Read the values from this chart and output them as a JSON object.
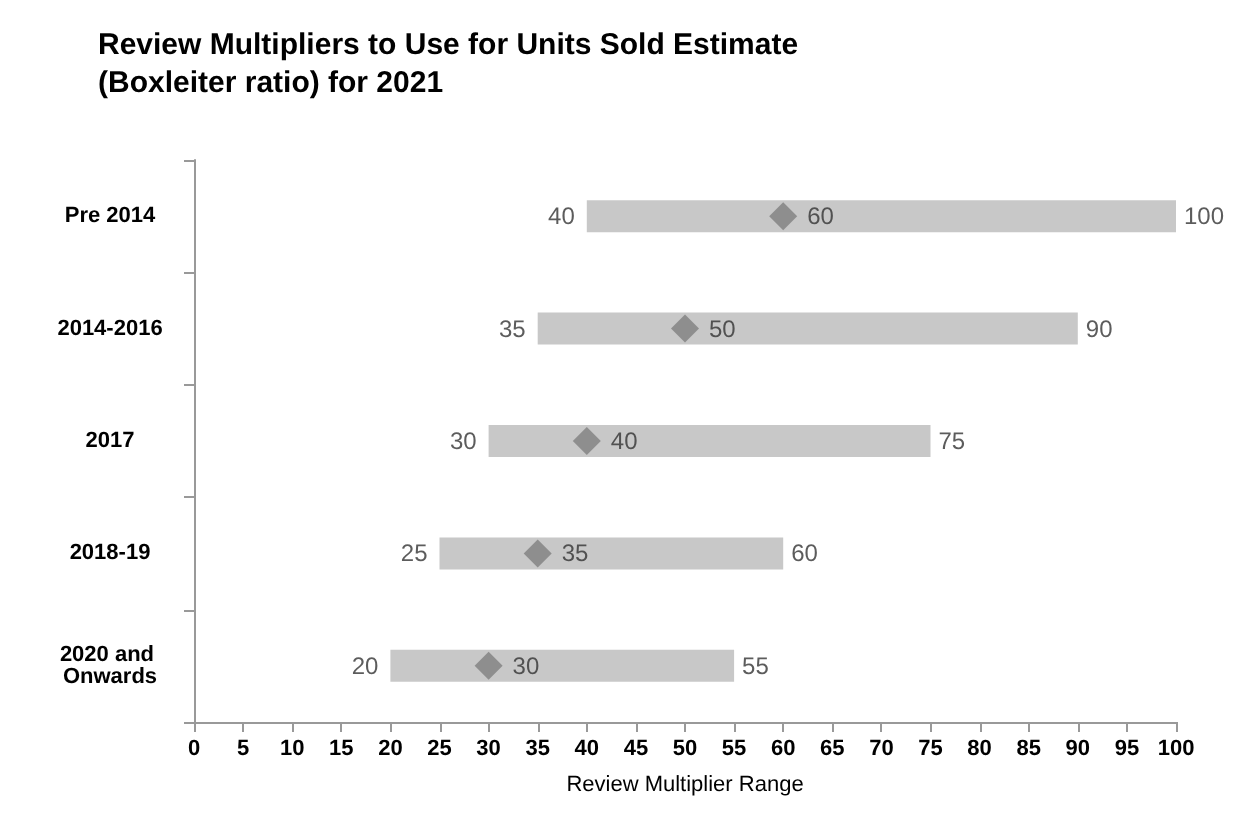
{
  "chart_data": {
    "type": "bar",
    "orientation": "horizontal",
    "title": "Review Multipliers to Use for Units Sold Estimate\n(Boxleiter ratio) for 2021",
    "xlabel": "Review Multiplier Range",
    "categories": [
      "Pre 2014",
      "2014-2016",
      "2017",
      "2018-19",
      "2020 and Onwards"
    ],
    "series": [
      {
        "color": "#c8c8c8",
        "base": [
          40,
          35,
          30,
          25,
          20
        ],
        "values": [
          60,
          55,
          45,
          35,
          35
        ]
      },
      {
        "type": "scatter",
        "color": "#808080",
        "marker": "diamond",
        "values": [
          60,
          50,
          40,
          35,
          30
        ],
        "value_labels": [
          "60",
          "50",
          "40",
          "35",
          "30"
        ]
      }
    ],
    "annotations": [
      {
        "text": "40",
        "x": 40,
        "y": "Pre 2014"
      },
      {
        "text": "100",
        "x": 100,
        "y": "Pre 2014"
      },
      {
        "text": "35",
        "x": 35,
        "y": "2014-2016"
      },
      {
        "text": "90",
        "x": 90,
        "y": "2014-2016"
      },
      {
        "text": "30",
        "x": 30,
        "y": "2017"
      },
      {
        "text": "75",
        "x": 75,
        "y": "2017"
      },
      {
        "text": "25",
        "x": 25,
        "y": "2018-19"
      },
      {
        "text": "60",
        "x": 60,
        "y": "2018-19"
      },
      {
        "text": "20",
        "x": 20,
        "y": "2020 and Onwards"
      },
      {
        "text": "55",
        "x": 55,
        "y": "2020 and Onwards"
      }
    ],
    "xlim": [
      0,
      100
    ],
    "xticks": [
      0,
      5,
      10,
      15,
      20,
      25,
      30,
      35,
      40,
      45,
      50,
      55,
      60,
      65,
      70,
      75,
      80,
      85,
      90,
      95,
      100
    ],
    "grid": false
  }
}
